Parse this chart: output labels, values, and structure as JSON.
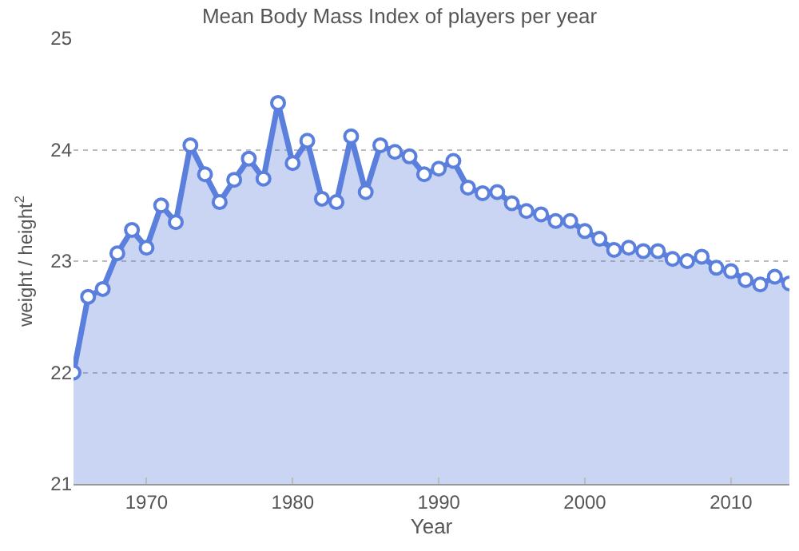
{
  "chart_data": {
    "type": "area",
    "title": "Mean Body Mass Index of players per year",
    "xlabel": "Year",
    "ylabel": "weight / height$^{2}$",
    "x": [
      1965,
      1966,
      1967,
      1968,
      1969,
      1970,
      1971,
      1972,
      1973,
      1974,
      1975,
      1976,
      1977,
      1978,
      1979,
      1980,
      1981,
      1982,
      1983,
      1984,
      1985,
      1986,
      1987,
      1988,
      1989,
      1990,
      1991,
      1992,
      1993,
      1994,
      1995,
      1996,
      1997,
      1998,
      1999,
      2000,
      2001,
      2002,
      2003,
      2004,
      2005,
      2006,
      2007,
      2008,
      2009,
      2010,
      2011,
      2012,
      2013,
      2014
    ],
    "series": [
      {
        "color": "#5b7fdc",
        "values": [
          22.0,
          22.68,
          22.75,
          23.07,
          23.28,
          23.12,
          23.5,
          23.35,
          24.04,
          23.78,
          23.53,
          23.73,
          23.92,
          23.74,
          24.42,
          23.88,
          24.08,
          23.56,
          23.53,
          24.12,
          23.62,
          24.04,
          23.98,
          23.94,
          23.78,
          23.83,
          23.9,
          23.66,
          23.61,
          23.62,
          23.52,
          23.45,
          23.42,
          23.36,
          23.36,
          23.27,
          23.2,
          23.1,
          23.12,
          23.09,
          23.09,
          23.02,
          23.0,
          23.04,
          22.94,
          22.91,
          22.83,
          22.79,
          22.86,
          22.8
        ]
      }
    ],
    "xlim": [
      1965,
      2014
    ],
    "xticks": [
      1970,
      1980,
      1990,
      2000,
      2010
    ],
    "ylim": [
      21,
      25
    ],
    "yticks": [
      21,
      22,
      23,
      24,
      25
    ],
    "grid": "y",
    "marker": "circle",
    "line_style": "solid"
  }
}
